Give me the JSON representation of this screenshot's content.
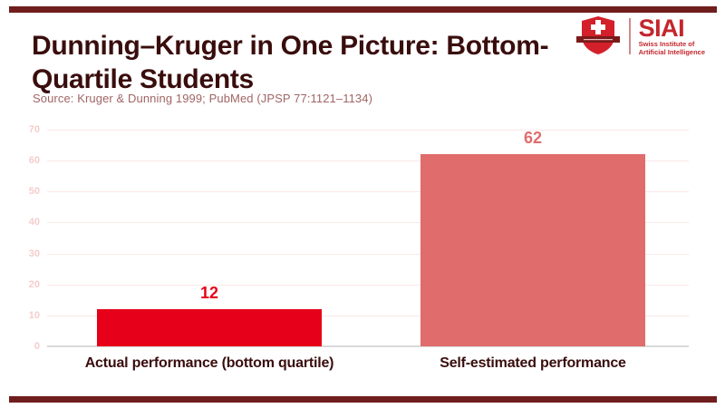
{
  "accent_color": "#701d1d",
  "header": {
    "title_line1": "Dunning–Kruger in One Picture: Bottom-",
    "title_line2": "Quartile Students",
    "title_color": "#3a0d0d"
  },
  "logo": {
    "acronym": "SIAI",
    "subtitle_line1": "Swiss Institute of",
    "subtitle_line2": "Artificial Intelligence",
    "brand_red": "#c4262c",
    "shield_red": "#d3202a",
    "ribbon_dark": "#7a1a1a"
  },
  "source_note": "Source: Kruger & Dunning 1999; PubMed (JPSP 77:1121–1134)",
  "chart_data": {
    "type": "bar",
    "title": "Dunning–Kruger in One Picture: Bottom-Quartile Students",
    "categories": [
      "Actual performance (bottom quartile)",
      "Self-estimated performance"
    ],
    "values": [
      12,
      62
    ],
    "value_labels": [
      "12",
      "62"
    ],
    "bar_colors": [
      "#e60019",
      "#e06c6c"
    ],
    "value_label_colors": [
      "#e60019",
      "#e06c6c"
    ],
    "xlabel": "",
    "ylabel": "",
    "ylim": [
      0,
      70
    ],
    "yticks": [
      0,
      10,
      20,
      30,
      40,
      50,
      60,
      70
    ],
    "grid": true,
    "legend": false,
    "gridline_color": "#fbe7e7",
    "tick_label_color": "#f5cdcd",
    "baseline_color": "#d9d9d9",
    "category_label_color": "#3a0d0d"
  }
}
